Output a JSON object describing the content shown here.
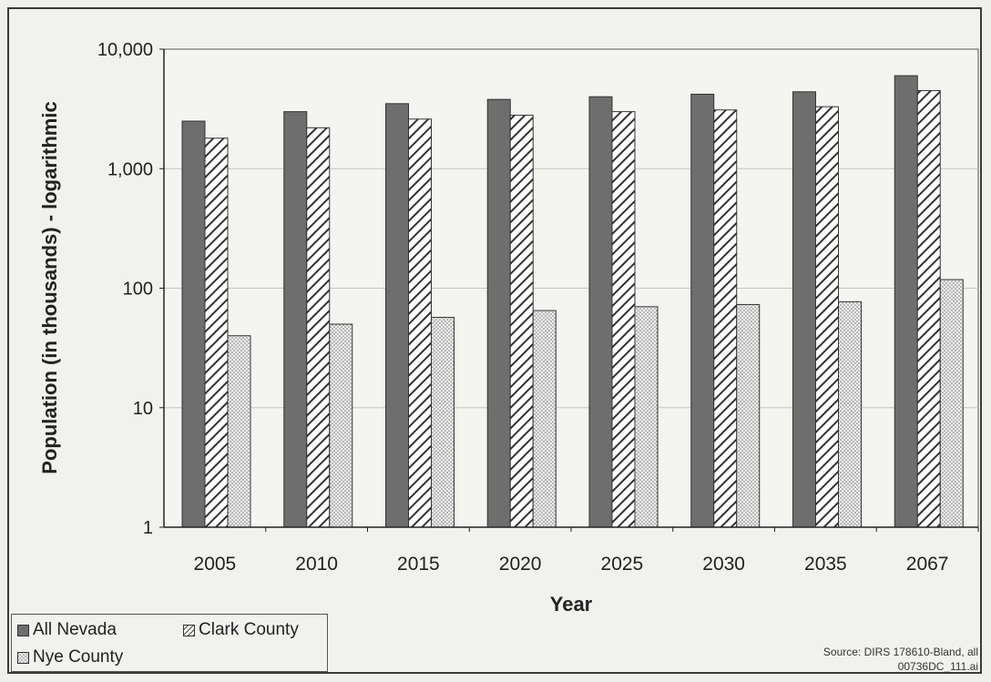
{
  "chart_data": {
    "type": "bar",
    "scale": "log",
    "title": "",
    "xlabel": "Year",
    "ylabel": "Population (in thousands) - logarithmic",
    "ylim": [
      1,
      10000
    ],
    "y_ticks": [
      "1",
      "10",
      "100",
      "1,000",
      "10,000"
    ],
    "grid": true,
    "legend_position": "bottom-left",
    "categories": [
      "2005",
      "2010",
      "2015",
      "2020",
      "2025",
      "2030",
      "2035",
      "2067"
    ],
    "series": [
      {
        "name": "All Nevada",
        "pattern": "solid",
        "color": "#6e6e6e",
        "values": [
          2500,
          3000,
          3500,
          3800,
          4000,
          4200,
          4400,
          6000
        ]
      },
      {
        "name": "Clark County",
        "pattern": "diagonal-hatch",
        "color": "#ffffff",
        "values": [
          1800,
          2200,
          2600,
          2800,
          3000,
          3100,
          3300,
          4500
        ]
      },
      {
        "name": "Nye County",
        "pattern": "dotted",
        "color": "#e6e6e6",
        "values": [
          40,
          50,
          57,
          65,
          70,
          73,
          77,
          118
        ]
      }
    ]
  },
  "source": {
    "line1": "Source:  DIRS 178610-Bland, all",
    "line2": "00736DC_111.ai"
  }
}
